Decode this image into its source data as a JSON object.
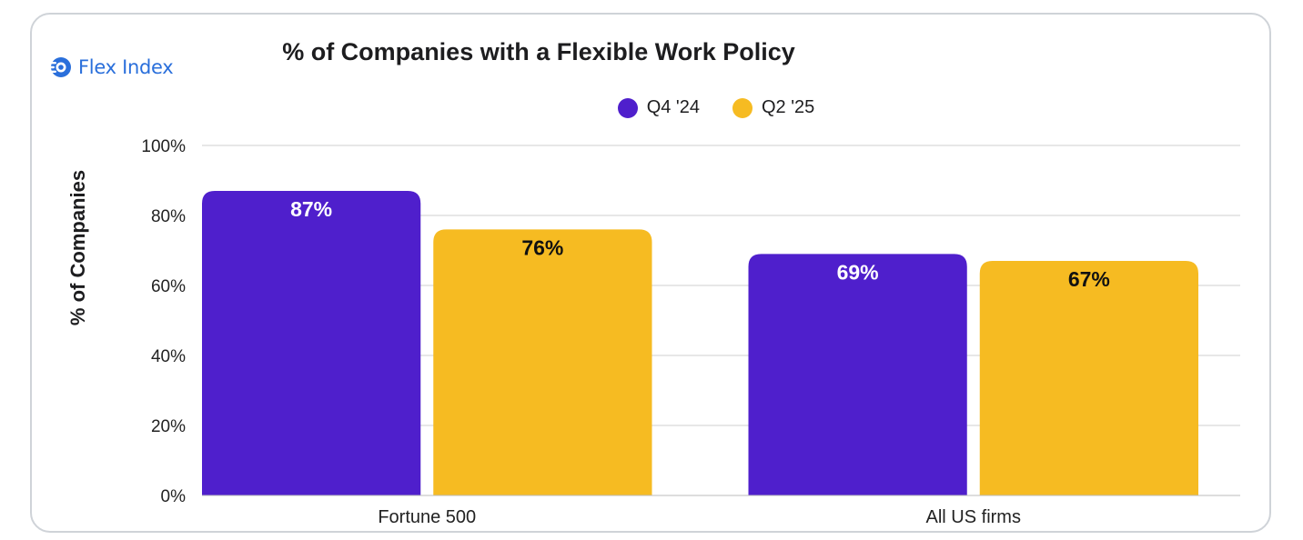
{
  "brand": {
    "name": "Flex Index",
    "logo_icon": "flex-index-logo-icon",
    "color": "#2a6fdb"
  },
  "chart_data": {
    "type": "bar",
    "title": "% of Companies with a Flexible Work Policy",
    "xlabel": "",
    "ylabel": "% of Companies",
    "ylim": [
      0,
      100
    ],
    "yticks": [
      "0%",
      "20%",
      "40%",
      "60%",
      "80%",
      "100%"
    ],
    "categories": [
      "Fortune 500",
      "All US firms"
    ],
    "series": [
      {
        "name": "Q4 '24",
        "color": "#4f1fcc",
        "label_color": "#ffffff",
        "values": [
          87,
          69
        ],
        "labels": [
          "87%",
          "69%"
        ]
      },
      {
        "name": "Q2 '25",
        "color": "#f6bb22",
        "label_color": "#111111",
        "values": [
          76,
          67
        ],
        "labels": [
          "76%",
          "67%"
        ]
      }
    ],
    "legend": "top-center",
    "grid": true
  }
}
